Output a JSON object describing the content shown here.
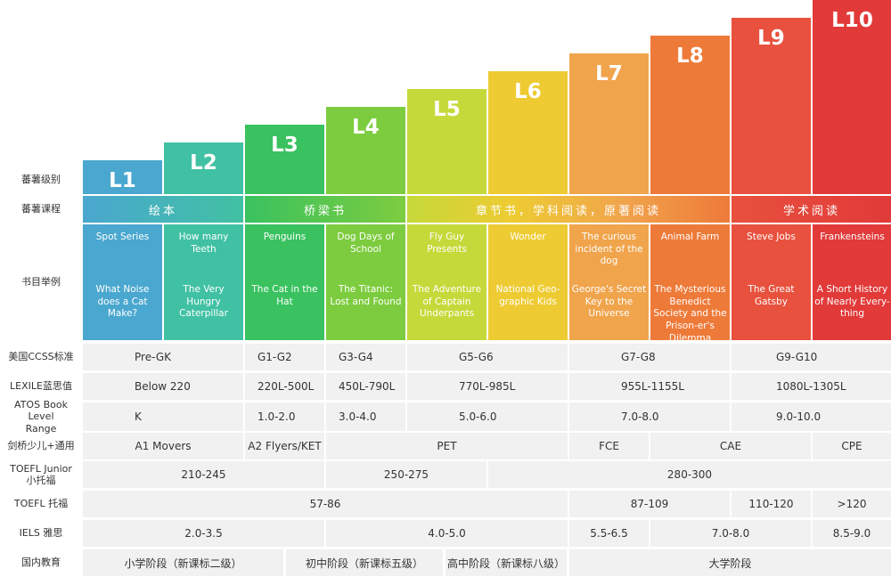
{
  "chart_data": {
    "type": "bar",
    "categories": [
      "L1",
      "L2",
      "L3",
      "L4",
      "L5",
      "L6",
      "L7",
      "L8",
      "L9",
      "L10"
    ],
    "colors": [
      "#4aa7cf",
      "#41c1a3",
      "#39c25f",
      "#7dcc3f",
      "#c6d93a",
      "#eecb32",
      "#f0a44c",
      "#ee7a39",
      "#e8513d",
      "#e13a39"
    ],
    "rows": {
      "level": "蕃薯级别",
      "course": "蕃薯课程",
      "books": "书目举例",
      "ccss": "美国CCSS标准",
      "lexile": "LEXILE蓝思值",
      "atos": "ATOS Book Level Range",
      "cambridge": "剑桥少儿+通用",
      "toefl_junior": "TOEFL Junior 小托福",
      "toefl": "TOEFL 托福",
      "ielts": "IELS 雅思",
      "domestic": "国内教育"
    },
    "courses": [
      {
        "label": "绘本",
        "levels": [
          "L1",
          "L2"
        ]
      },
      {
        "label": "桥梁书",
        "levels": [
          "L3",
          "L4"
        ]
      },
      {
        "label": "章节书，学科阅读，原著阅读",
        "levels": [
          "L5",
          "L6",
          "L7",
          "L8"
        ]
      },
      {
        "label": "学术阅读",
        "levels": [
          "L9",
          "L10"
        ]
      }
    ],
    "books": [
      {
        "top": "Spot Series",
        "bottom": "What Noise does a Cat Make?"
      },
      {
        "top": "How many Teeth",
        "bottom": "The Very Hungry Caterpillar"
      },
      {
        "top": "Penguins",
        "bottom": "The Cat in the Hat"
      },
      {
        "top": "Dog Days of School",
        "bottom": "The Titanic: Lost and Found"
      },
      {
        "top": "Fly Guy Presents",
        "bottom": "The Adventure of Captain Underpants"
      },
      {
        "top": "Wonder",
        "bottom": "National Geo-graphic Kids"
      },
      {
        "top": "The curious incident of the dog",
        "bottom": "George's Secret Key to the Universe"
      },
      {
        "top": "Animal Farm",
        "bottom": "The Mysterious Benedict Society and the Prison-er's Dilemma"
      },
      {
        "top": "Steve Jobs",
        "bottom": "The Great Gatsby"
      },
      {
        "top": "Frankensteins",
        "bottom": "A Short History of Nearly Every-thing"
      }
    ],
    "ccss": [
      "Pre-GK",
      "G1-G2",
      "G3-G4",
      "G5-G6",
      "G7-G8",
      "G9-G10"
    ],
    "lexile": [
      "Below 220",
      "220L-500L",
      "450L-790L",
      "770L-985L",
      "955L-1155L",
      "1080L-1305L"
    ],
    "atos": [
      "K",
      "1.0-2.0",
      "3.0-4.0",
      "5.0-6.0",
      "7.0-8.0",
      "9.0-10.0"
    ],
    "cambridge": [
      "A1 Movers",
      "A2 Flyers/KET",
      "PET",
      "FCE",
      "CAE",
      "CPE"
    ],
    "toefl_junior": [
      "210-245",
      "250-275",
      "280-300"
    ],
    "toefl": [
      "57-86",
      "87-109",
      "110-120",
      ">120"
    ],
    "ielts": [
      "2.0-3.5",
      "4.0-5.0",
      "5.5-6.5",
      "7.0-8.0",
      "8.5-9.0"
    ],
    "domestic": [
      "小学阶段（新课标二级）",
      "初中阶段（新课标五级）",
      "高中阶段（新课标八级）",
      "大学阶段"
    ]
  }
}
